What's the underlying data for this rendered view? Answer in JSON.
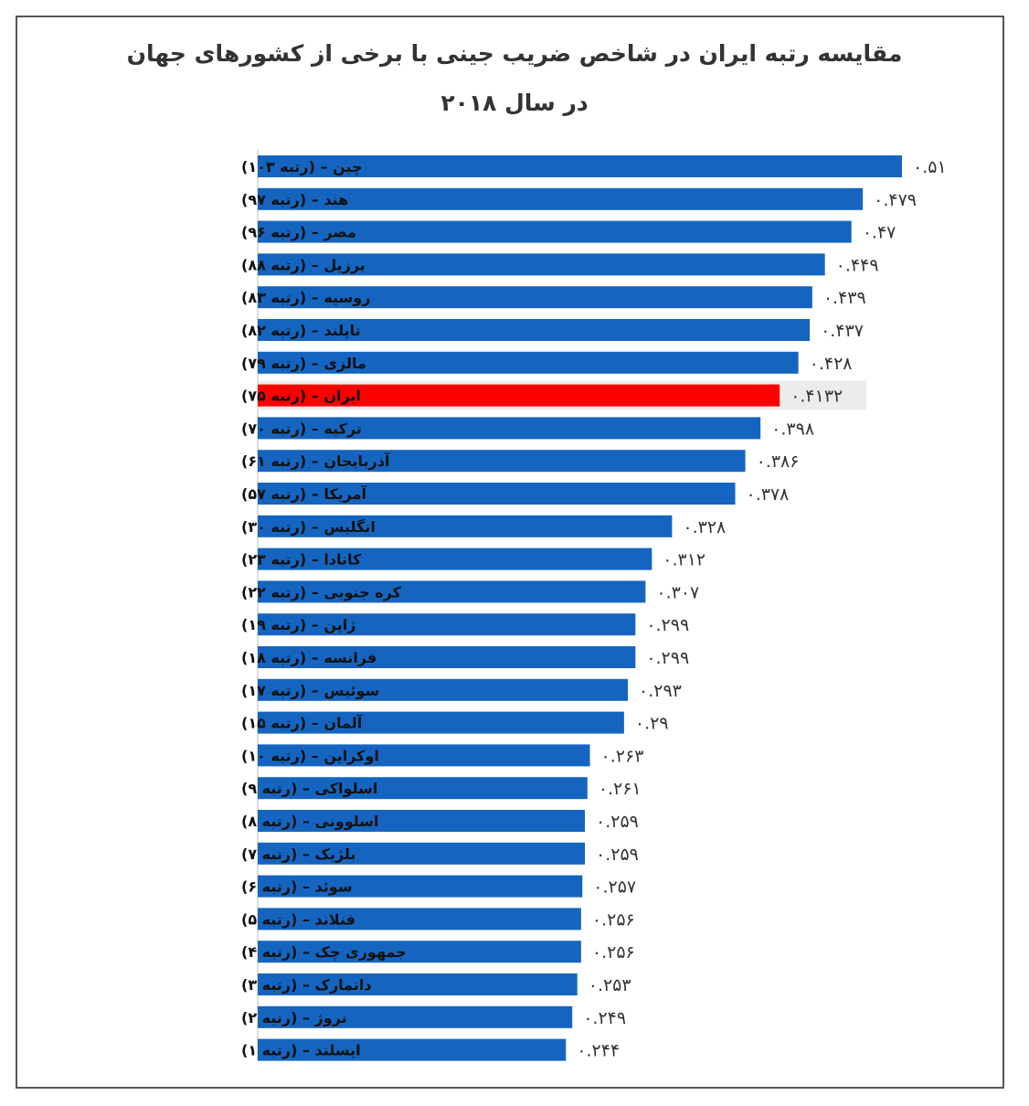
{
  "title_line1": "مقایسه رتبه ایران در شاخص ضریب جینی با برخی از کشورهای جهان",
  "title_line2": "در سال ۲۰۱۸",
  "colors": {
    "bar": "#1565c0",
    "highlight": "#ff0000",
    "highlight_bg": "#ececec"
  },
  "chart_data": {
    "type": "bar",
    "orientation": "horizontal",
    "title": "مقایسه رتبه ایران در شاخص ضریب جینی با برخی از کشورهای جهان در سال ۲۰۱۸",
    "xlabel": "",
    "ylabel": "",
    "highlight_category": "ایران – (رتبه ۷۵)",
    "categories": [
      "چین – (رتبه ۱۰۳)",
      "هند – (رتبه ۹۷)",
      "مصر – (رتبه ۹۶)",
      "برزیل – (رتبه ۸۸)",
      "روسیه – (رتبه ۸۳)",
      "تایلند – (رتبه ۸۲)",
      "مالزی – (رتبه ۷۹)",
      "ایران – (رتبه ۷۵)",
      "ترکیه – (رتبه ۷۰)",
      "آذربایجان – (رتبه ۶۱)",
      "آمریکا – (رتبه ۵۷)",
      "انگلیس – (رتبه ۳۰)",
      "کانادا – (رتبه ۲۳)",
      "کره جنوبی – (رتبه ۲۲)",
      "ژاپن – (رتبه ۱۹)",
      "فرانسه – (رتبه ۱۸)",
      "سوئیس – (رتبه ۱۷)",
      "آلمان – (رتبه ۱۵)",
      "اوکراین – (رتبه ۱۰)",
      "اسلواکی – (رتبه ۹)",
      "اسلوونی – (رتبه ۸)",
      "بلژیک – (رتبه ۷)",
      "سوئد – (رتبه ۶)",
      "فنلاند – (رتبه ۵)",
      "جمهوری چک – (رتبه ۴)",
      "دانمارک – (رتبه ۳)",
      "نروژ – (رتبه ۲)",
      "ایسلند – (رتبه ۱)"
    ],
    "values": [
      0.51,
      0.479,
      0.47,
      0.449,
      0.439,
      0.437,
      0.428,
      0.4132,
      0.398,
      0.386,
      0.378,
      0.328,
      0.312,
      0.307,
      0.299,
      0.299,
      0.293,
      0.29,
      0.263,
      0.261,
      0.259,
      0.259,
      0.257,
      0.256,
      0.256,
      0.253,
      0.249,
      0.244
    ],
    "value_labels": [
      "۰.۵۱",
      "۰.۴۷۹",
      "۰.۴۷",
      "۰.۴۴۹",
      "۰.۴۳۹",
      "۰.۴۳۷",
      "۰.۴۲۸",
      "۰.۴۱۳۲",
      "۰.۳۹۸",
      "۰.۳۸۶",
      "۰.۳۷۸",
      "۰.۳۲۸",
      "۰.۳۱۲",
      "۰.۳۰۷",
      "۰.۲۹۹",
      "۰.۲۹۹",
      "۰.۲۹۳",
      "۰.۲۹",
      "۰.۲۶۳",
      "۰.۲۶۱",
      "۰.۲۵۹",
      "۰.۲۵۹",
      "۰.۲۵۷",
      "۰.۲۵۶",
      "۰.۲۵۶",
      "۰.۲۵۳",
      "۰.۲۴۹",
      "۰.۲۴۴"
    ],
    "xlim": [
      0,
      0.51
    ],
    "grid": false,
    "legend": "none"
  }
}
